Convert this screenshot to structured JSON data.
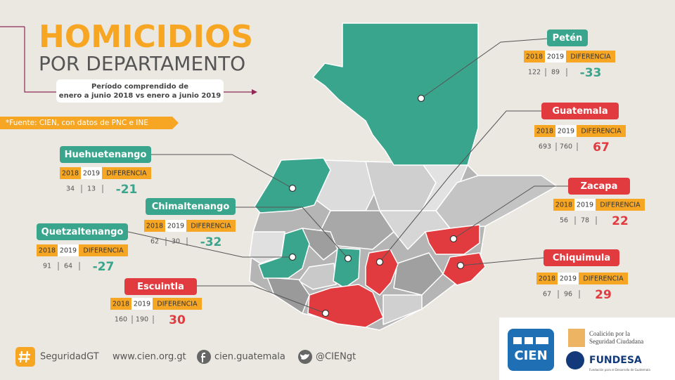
{
  "header": {
    "title": "HOMICIDIOS",
    "subtitle": "POR DEPARTAMENTO",
    "period": [
      "Período comprendido de",
      "enero a junio 2018 vs enero a junio 2019"
    ],
    "source": "*Fuente: CIEN, con datos de PNC e INE"
  },
  "labels": {
    "year1": "2018",
    "year2": "2019",
    "difference": "DIFERENCIA"
  },
  "departments": [
    {
      "name": "Petén",
      "v2018": 122,
      "v2019": 89,
      "diff": -33,
      "color": "#3aa58d"
    },
    {
      "name": "Guatemala",
      "v2018": 693,
      "v2019": 760,
      "diff": 67,
      "color": "#e23b3f"
    },
    {
      "name": "Zacapa",
      "v2018": 56,
      "v2019": 78,
      "diff": 22,
      "color": "#e23b3f"
    },
    {
      "name": "Chiquimula",
      "v2018": 67,
      "v2019": 96,
      "diff": 29,
      "color": "#e23b3f"
    },
    {
      "name": "Huehuetenango",
      "v2018": 34,
      "v2019": 13,
      "diff": -21,
      "color": "#3aa58d"
    },
    {
      "name": "Chimaltenango",
      "v2018": 62,
      "v2019": 30,
      "diff": -32,
      "color": "#3aa58d"
    },
    {
      "name": "Quetzaltenango",
      "v2018": 91,
      "v2019": 64,
      "diff": -27,
      "color": "#3aa58d"
    },
    {
      "name": "Escuintla",
      "v2018": 160,
      "v2019": 190,
      "diff": 30,
      "color": "#e23b3f"
    }
  ],
  "footer": {
    "hashtag": "SeguridadGT",
    "website": "www.cien.org.gt",
    "facebook": "cien.guatemala",
    "twitter": "@CIENgt"
  },
  "logos": {
    "cien": "CIEN",
    "coalition": [
      "Coalición por la",
      "Seguridad Ciudadana"
    ],
    "fundesa": "FUNDESA",
    "fundesa_tagline": "Fundación para el Desarrollo de Guatemala"
  }
}
